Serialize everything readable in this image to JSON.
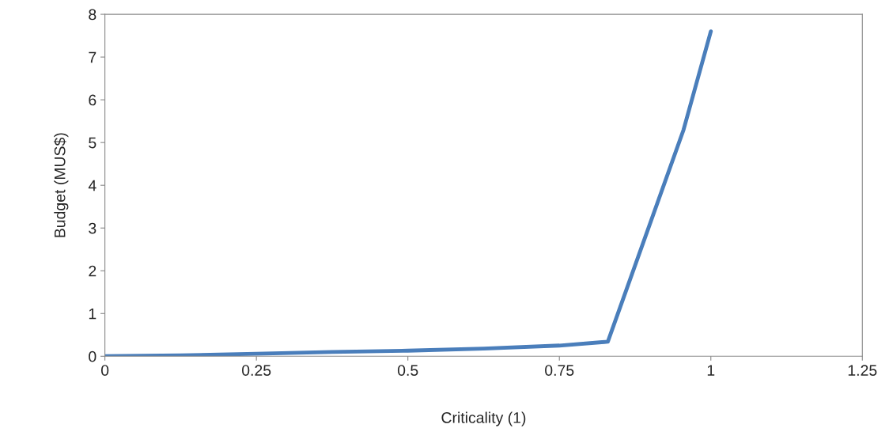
{
  "chart_data": {
    "type": "line",
    "xlabel": "Criticality (1)",
    "ylabel": "Budget (MUS$)",
    "x": [
      0,
      0.125,
      0.25,
      0.375,
      0.5,
      0.625,
      0.75,
      0.83,
      0.955,
      1
    ],
    "series": [
      {
        "color": "#4a7ebb",
        "values": [
          0,
          0.02,
          0.06,
          0.1,
          0.13,
          0.18,
          0.25,
          0.34,
          5.3,
          7.6
        ]
      }
    ],
    "xlim": [
      0,
      1.25
    ],
    "xticks": [
      0,
      0.25,
      0.5,
      0.75,
      1,
      1.25
    ],
    "ylim": [
      0,
      8
    ],
    "yticks": [
      0,
      1,
      2,
      3,
      4,
      5,
      6,
      7,
      8
    ],
    "grid": false,
    "legend": false,
    "marker": "none",
    "line_style": "solid"
  }
}
